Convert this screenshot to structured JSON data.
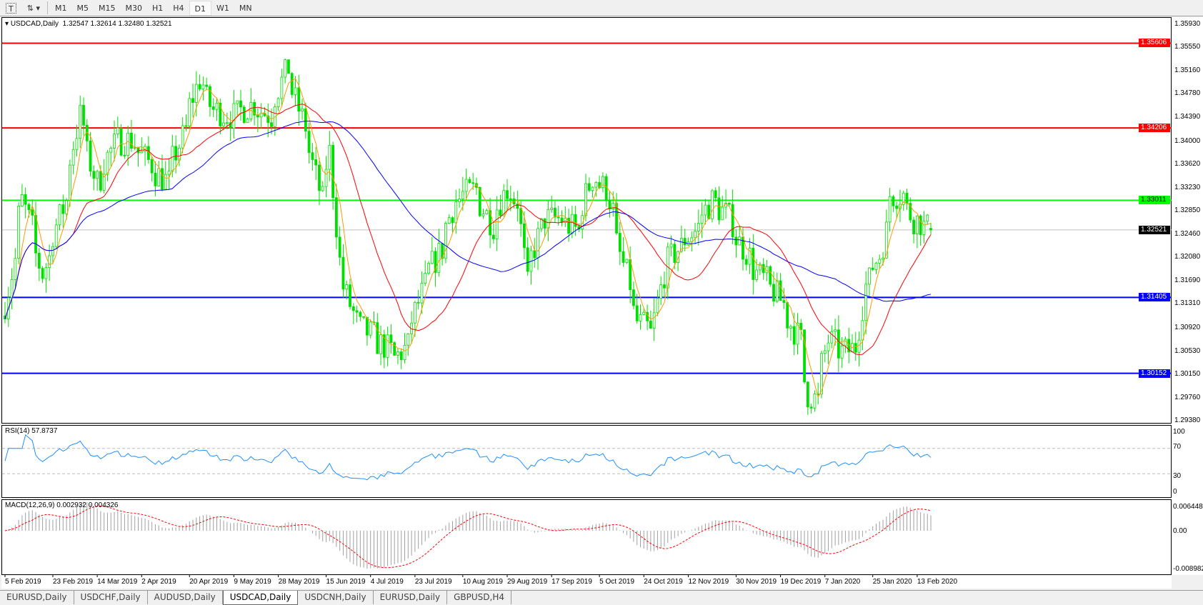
{
  "toolbar": {
    "timeframes": [
      "M1",
      "M5",
      "M15",
      "M30",
      "H1",
      "H4",
      "D1",
      "W1",
      "MN"
    ],
    "active": "D1"
  },
  "chart": {
    "symbol_label": "USDCAD,Daily",
    "ohlc": "1.32547 1.32614 1.32480 1.32521",
    "price_axis": [
      "1.35930",
      "1.35550",
      "1.35160",
      "1.34780",
      "1.34390",
      "1.34000",
      "1.33620",
      "1.33230",
      "1.32850",
      "1.32460",
      "1.32080",
      "1.31690",
      "1.31310",
      "1.30920",
      "1.30530",
      "1.30150",
      "1.29760",
      "1.29380"
    ],
    "levels": [
      {
        "price": "1.35606",
        "color": "#ff0000"
      },
      {
        "price": "1.34206",
        "color": "#ff0000"
      },
      {
        "price": "1.33011",
        "color": "#00ff00"
      },
      {
        "price": "1.31405",
        "color": "#0000ff"
      },
      {
        "price": "1.30152",
        "color": "#0000ff"
      }
    ],
    "current_price": "1.32521",
    "colors": {
      "candle": "#00e000",
      "ma_fast": "#ff9900",
      "ma_mid": "#ff0000",
      "ma_slow": "#0000ff"
    }
  },
  "chart_data": {
    "type": "candlestick",
    "approx_close_path": [
      [
        "2019-02-05",
        1.313
      ],
      [
        "2019-02-12",
        1.33
      ],
      [
        "2019-02-20",
        1.318
      ],
      [
        "2019-03-01",
        1.33
      ],
      [
        "2019-03-07",
        1.344
      ],
      [
        "2019-03-14",
        1.333
      ],
      [
        "2019-03-22",
        1.34
      ],
      [
        "2019-03-28",
        1.34
      ],
      [
        "2019-04-05",
        1.336
      ],
      [
        "2019-04-12",
        1.333
      ],
      [
        "2019-04-20",
        1.343
      ],
      [
        "2019-04-25",
        1.35
      ],
      [
        "2019-05-01",
        1.345
      ],
      [
        "2019-05-09",
        1.344
      ],
      [
        "2019-05-17",
        1.346
      ],
      [
        "2019-05-24",
        1.344
      ],
      [
        "2019-05-31",
        1.352
      ],
      [
        "2019-06-03",
        1.348
      ],
      [
        "2019-06-10",
        1.338
      ],
      [
        "2019-06-14",
        1.33
      ],
      [
        "2019-06-18",
        1.338
      ],
      [
        "2019-06-21",
        1.32
      ],
      [
        "2019-06-28",
        1.31
      ],
      [
        "2019-07-04",
        1.308
      ],
      [
        "2019-07-10",
        1.306
      ],
      [
        "2019-07-15",
        1.304
      ],
      [
        "2019-07-19",
        1.306
      ],
      [
        "2019-07-26",
        1.316
      ],
      [
        "2019-08-02",
        1.322
      ],
      [
        "2019-08-08",
        1.33
      ],
      [
        "2019-08-16",
        1.332
      ],
      [
        "2019-08-23",
        1.326
      ],
      [
        "2019-08-29",
        1.332
      ],
      [
        "2019-09-03",
        1.33
      ],
      [
        "2019-09-06",
        1.316
      ],
      [
        "2019-09-13",
        1.327
      ],
      [
        "2019-09-20",
        1.327
      ],
      [
        "2019-09-27",
        1.325
      ],
      [
        "2019-10-03",
        1.334
      ],
      [
        "2019-10-09",
        1.332
      ],
      [
        "2019-10-15",
        1.321
      ],
      [
        "2019-10-22",
        1.31
      ],
      [
        "2019-10-28",
        1.308
      ],
      [
        "2019-11-01",
        1.318
      ],
      [
        "2019-11-07",
        1.322
      ],
      [
        "2019-11-14",
        1.325
      ],
      [
        "2019-11-21",
        1.33
      ],
      [
        "2019-11-27",
        1.328
      ],
      [
        "2019-12-03",
        1.323
      ],
      [
        "2019-12-10",
        1.318
      ],
      [
        "2019-12-17",
        1.315
      ],
      [
        "2019-12-20",
        1.313
      ],
      [
        "2019-12-27",
        1.307
      ],
      [
        "2019-12-31",
        1.298
      ],
      [
        "2020-01-03",
        1.297
      ],
      [
        "2020-01-08",
        1.307
      ],
      [
        "2020-01-14",
        1.305
      ],
      [
        "2020-01-20",
        1.306
      ],
      [
        "2020-01-23",
        1.316
      ],
      [
        "2020-01-29",
        1.321
      ],
      [
        "2020-02-03",
        1.331
      ],
      [
        "2020-02-07",
        1.331
      ],
      [
        "2020-02-12",
        1.327
      ],
      [
        "2020-02-19",
        1.32521
      ]
    ],
    "ylim": [
      1.2938,
      1.3593
    ],
    "x_ticks": [
      [
        "2019-02-05",
        "5 Feb 2019"
      ],
      [
        "2019-02-23",
        "23 Feb 2019"
      ],
      [
        "2019-03-14",
        "14 Mar 2019"
      ],
      [
        "2019-04-02",
        "2 Apr 2019"
      ],
      [
        "2019-04-20",
        "20 Apr 2019"
      ],
      [
        "2019-05-09",
        "9 May 2019"
      ],
      [
        "2019-05-28",
        "28 May 2019"
      ],
      [
        "2019-06-15",
        "15 Jun 2019"
      ],
      [
        "2019-07-04",
        "4 Jul 2019"
      ],
      [
        "2019-07-23",
        "23 Jul 2019"
      ],
      [
        "2019-08-10",
        "10 Aug 2019"
      ],
      [
        "2019-08-29",
        "29 Aug 2019"
      ],
      [
        "2019-09-17",
        "17 Sep 2019"
      ],
      [
        "2019-10-05",
        "5 Oct 2019"
      ],
      [
        "2019-10-24",
        "24 Oct 2019"
      ],
      [
        "2019-11-12",
        "12 Nov 2019"
      ],
      [
        "2019-11-30",
        "30 Nov 2019"
      ],
      [
        "2019-12-19",
        "19 Dec 2019"
      ],
      [
        "2020-01-07",
        "7 Jan 2020"
      ],
      [
        "2020-01-25",
        "25 Jan 2020"
      ],
      [
        "2020-02-13",
        "13 Feb 2020"
      ]
    ]
  },
  "rsi": {
    "label": "RSI(14) 57.8737",
    "axis": [
      "100",
      "70",
      "30",
      "0"
    ],
    "levels": [
      70,
      30
    ],
    "color": "#1e90ff"
  },
  "macd": {
    "label": "MACD(12,26,9) 0.002932 0.004326",
    "axis": [
      "0.006448",
      "0.00",
      "-0.008982"
    ]
  },
  "tabs": [
    {
      "label": "EURUSD,Daily"
    },
    {
      "label": "USDCHF,Daily"
    },
    {
      "label": "AUDUSD,Daily"
    },
    {
      "label": "USDCAD,Daily",
      "active": true
    },
    {
      "label": "USDCNH,Daily"
    },
    {
      "label": "EURUSD,Daily"
    },
    {
      "label": "GBPUSD,H4"
    }
  ]
}
